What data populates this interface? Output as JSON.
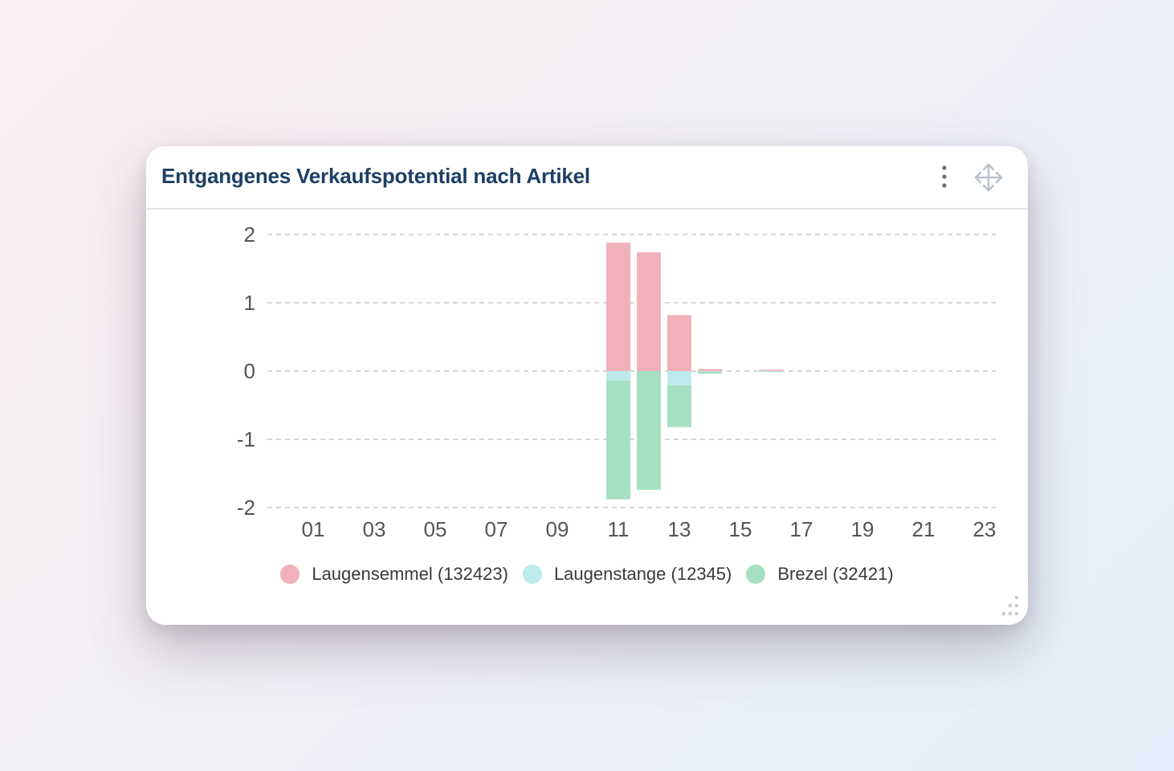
{
  "widget": {
    "title": "Entgangenes Verkaufspotential nach Artikel",
    "menu_icon": "more-vertical-icon",
    "move_icon": "move-arrows-icon",
    "resize_icon": "resize-handle-icon"
  },
  "chart_data": {
    "type": "bar",
    "stacked": true,
    "title": "Entgangenes Verkaufspotential nach Artikel",
    "xlabel": "",
    "ylabel": "",
    "x": [
      0,
      1,
      2,
      3,
      4,
      5,
      6,
      7,
      8,
      9,
      10,
      11,
      12,
      13,
      14,
      15,
      16,
      17,
      18,
      19,
      20,
      21,
      22,
      23
    ],
    "x_tick_labels": [
      "01",
      "03",
      "05",
      "07",
      "09",
      "11",
      "13",
      "15",
      "17",
      "19",
      "21",
      "23"
    ],
    "y_tick_labels": [
      "2",
      "1",
      "0",
      "-1",
      "-2"
    ],
    "ylim": [
      -2,
      2
    ],
    "grid": true,
    "legend_position": "bottom-center",
    "series": [
      {
        "name": "Laugensemmel (132423)",
        "color": "#f0b1bb",
        "values": [
          0,
          0,
          0,
          0,
          0,
          0,
          0,
          0,
          0,
          0,
          0,
          1.88,
          1.74,
          0.82,
          0.03,
          0,
          0.02,
          0,
          0,
          0,
          0,
          0,
          0,
          0
        ]
      },
      {
        "name": "Laugenstange (12345)",
        "color": "#bdebec",
        "values": [
          0,
          0,
          0,
          0,
          0,
          0,
          0,
          0,
          0,
          0,
          0,
          -0.14,
          0,
          -0.21,
          -0.01,
          0,
          -0.01,
          0,
          0,
          0,
          0,
          0,
          0,
          0
        ]
      },
      {
        "name": "Brezel (32421)",
        "color": "#a6e0c3",
        "values": [
          0,
          0,
          0,
          0,
          0,
          0,
          0,
          0,
          0,
          0,
          0,
          -1.74,
          -1.74,
          -0.61,
          -0.03,
          0,
          0,
          0,
          0,
          0,
          0,
          0,
          0,
          0
        ]
      }
    ]
  }
}
